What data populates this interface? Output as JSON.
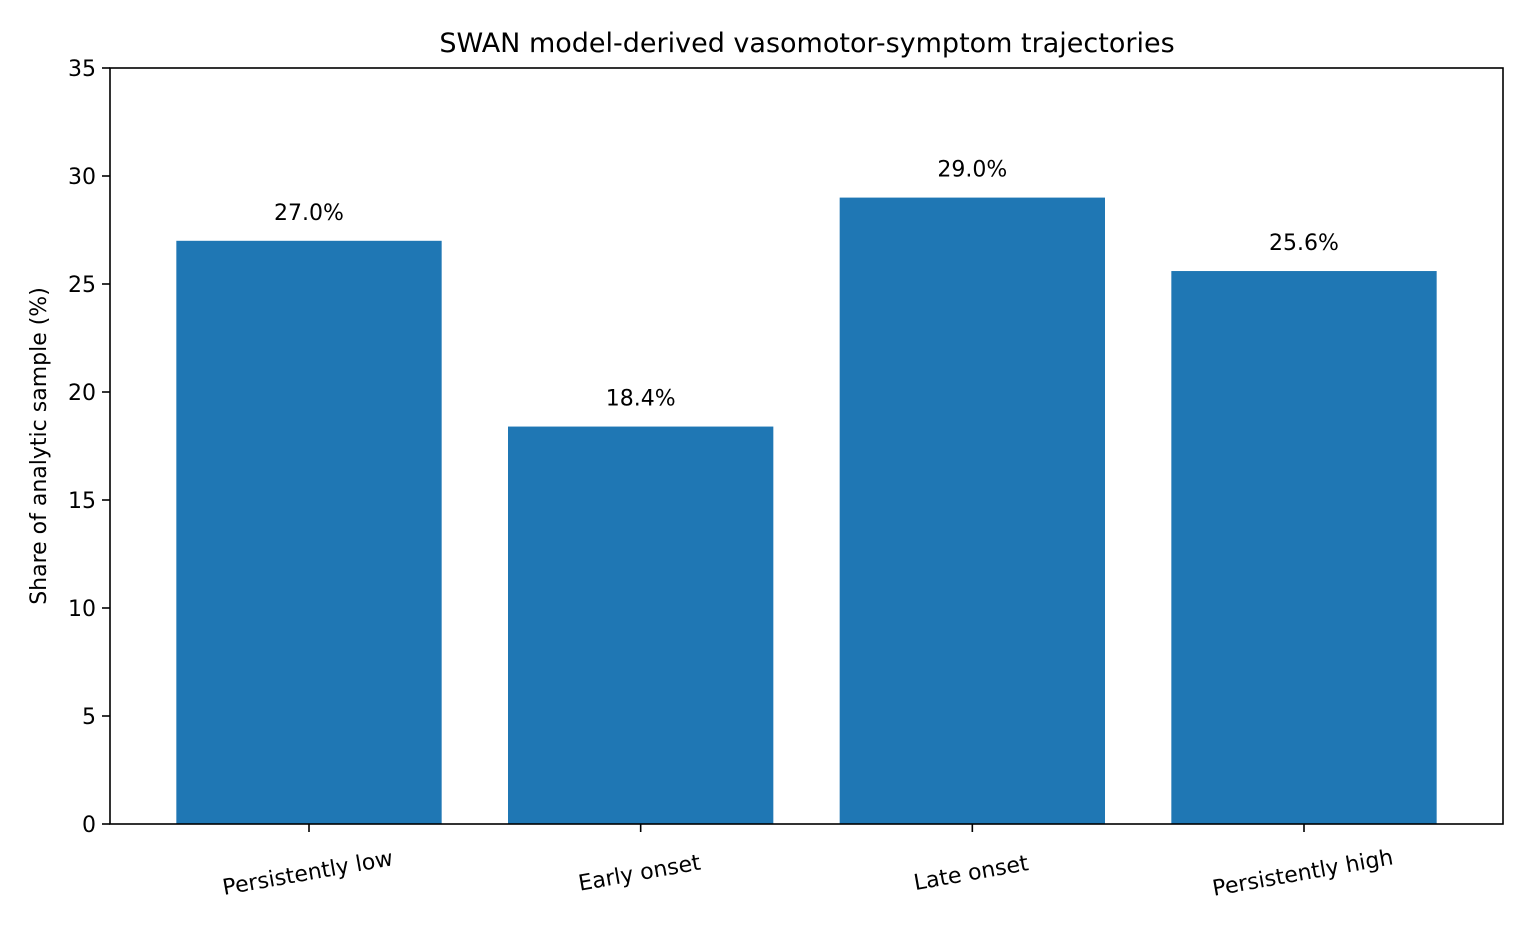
{
  "chart_data": {
    "type": "bar",
    "title": "SWAN model-derived vasomotor-symptom trajectories",
    "xlabel": "",
    "ylabel": "Share of analytic sample (%)",
    "categories": [
      "Persistently low",
      "Early onset",
      "Late onset",
      "Persistently high"
    ],
    "values": [
      27.0,
      18.4,
      29.0,
      25.6
    ],
    "data_labels": [
      "27.0%",
      "18.4%",
      "29.0%",
      "25.6%"
    ],
    "ylim": [
      0,
      35
    ],
    "yticks": [
      0,
      5,
      10,
      15,
      20,
      25,
      30,
      35
    ],
    "ytick_labels": [
      "0",
      "5",
      "10",
      "15",
      "20",
      "25",
      "30",
      "35"
    ],
    "grid": false,
    "colors": {
      "bar": "#1f77b4",
      "axis": "#000000"
    }
  }
}
